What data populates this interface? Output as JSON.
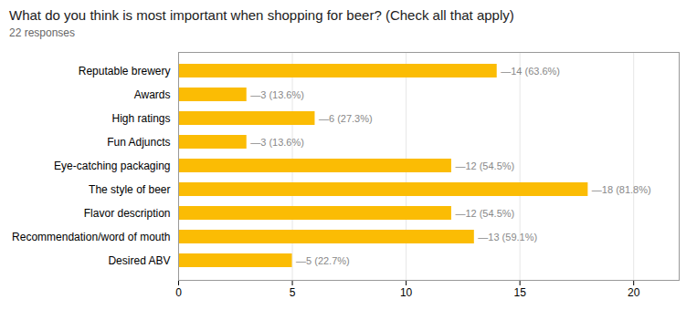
{
  "chart_data": {
    "type": "bar",
    "orientation": "horizontal",
    "title": "What do you think is most important when shopping for beer? (Check all that apply)",
    "subtitle": "22 responses",
    "categories": [
      "Reputable brewery",
      "Awards",
      "High ratings",
      "Fun Adjuncts",
      "Eye-catching packaging",
      "The style of beer",
      "Flavor description",
      "Recommendation/word of mouth",
      "Desired ABV"
    ],
    "values": [
      14,
      3,
      6,
      3,
      12,
      18,
      12,
      13,
      5
    ],
    "value_labels": [
      "—14 (63.6%)",
      "—3 (13.6%)",
      "—6 (27.3%)",
      "—3 (13.6%)",
      "—12 (54.5%)",
      "—18 (81.8%)",
      "—12 (54.5%)",
      "—13 (59.1%)",
      "—5 (22.7%)"
    ],
    "data_labels": true,
    "color": "#FBBC04",
    "xlim": [
      0,
      22
    ],
    "xticks": [
      0,
      5,
      10,
      15,
      20
    ],
    "grid": true
  }
}
